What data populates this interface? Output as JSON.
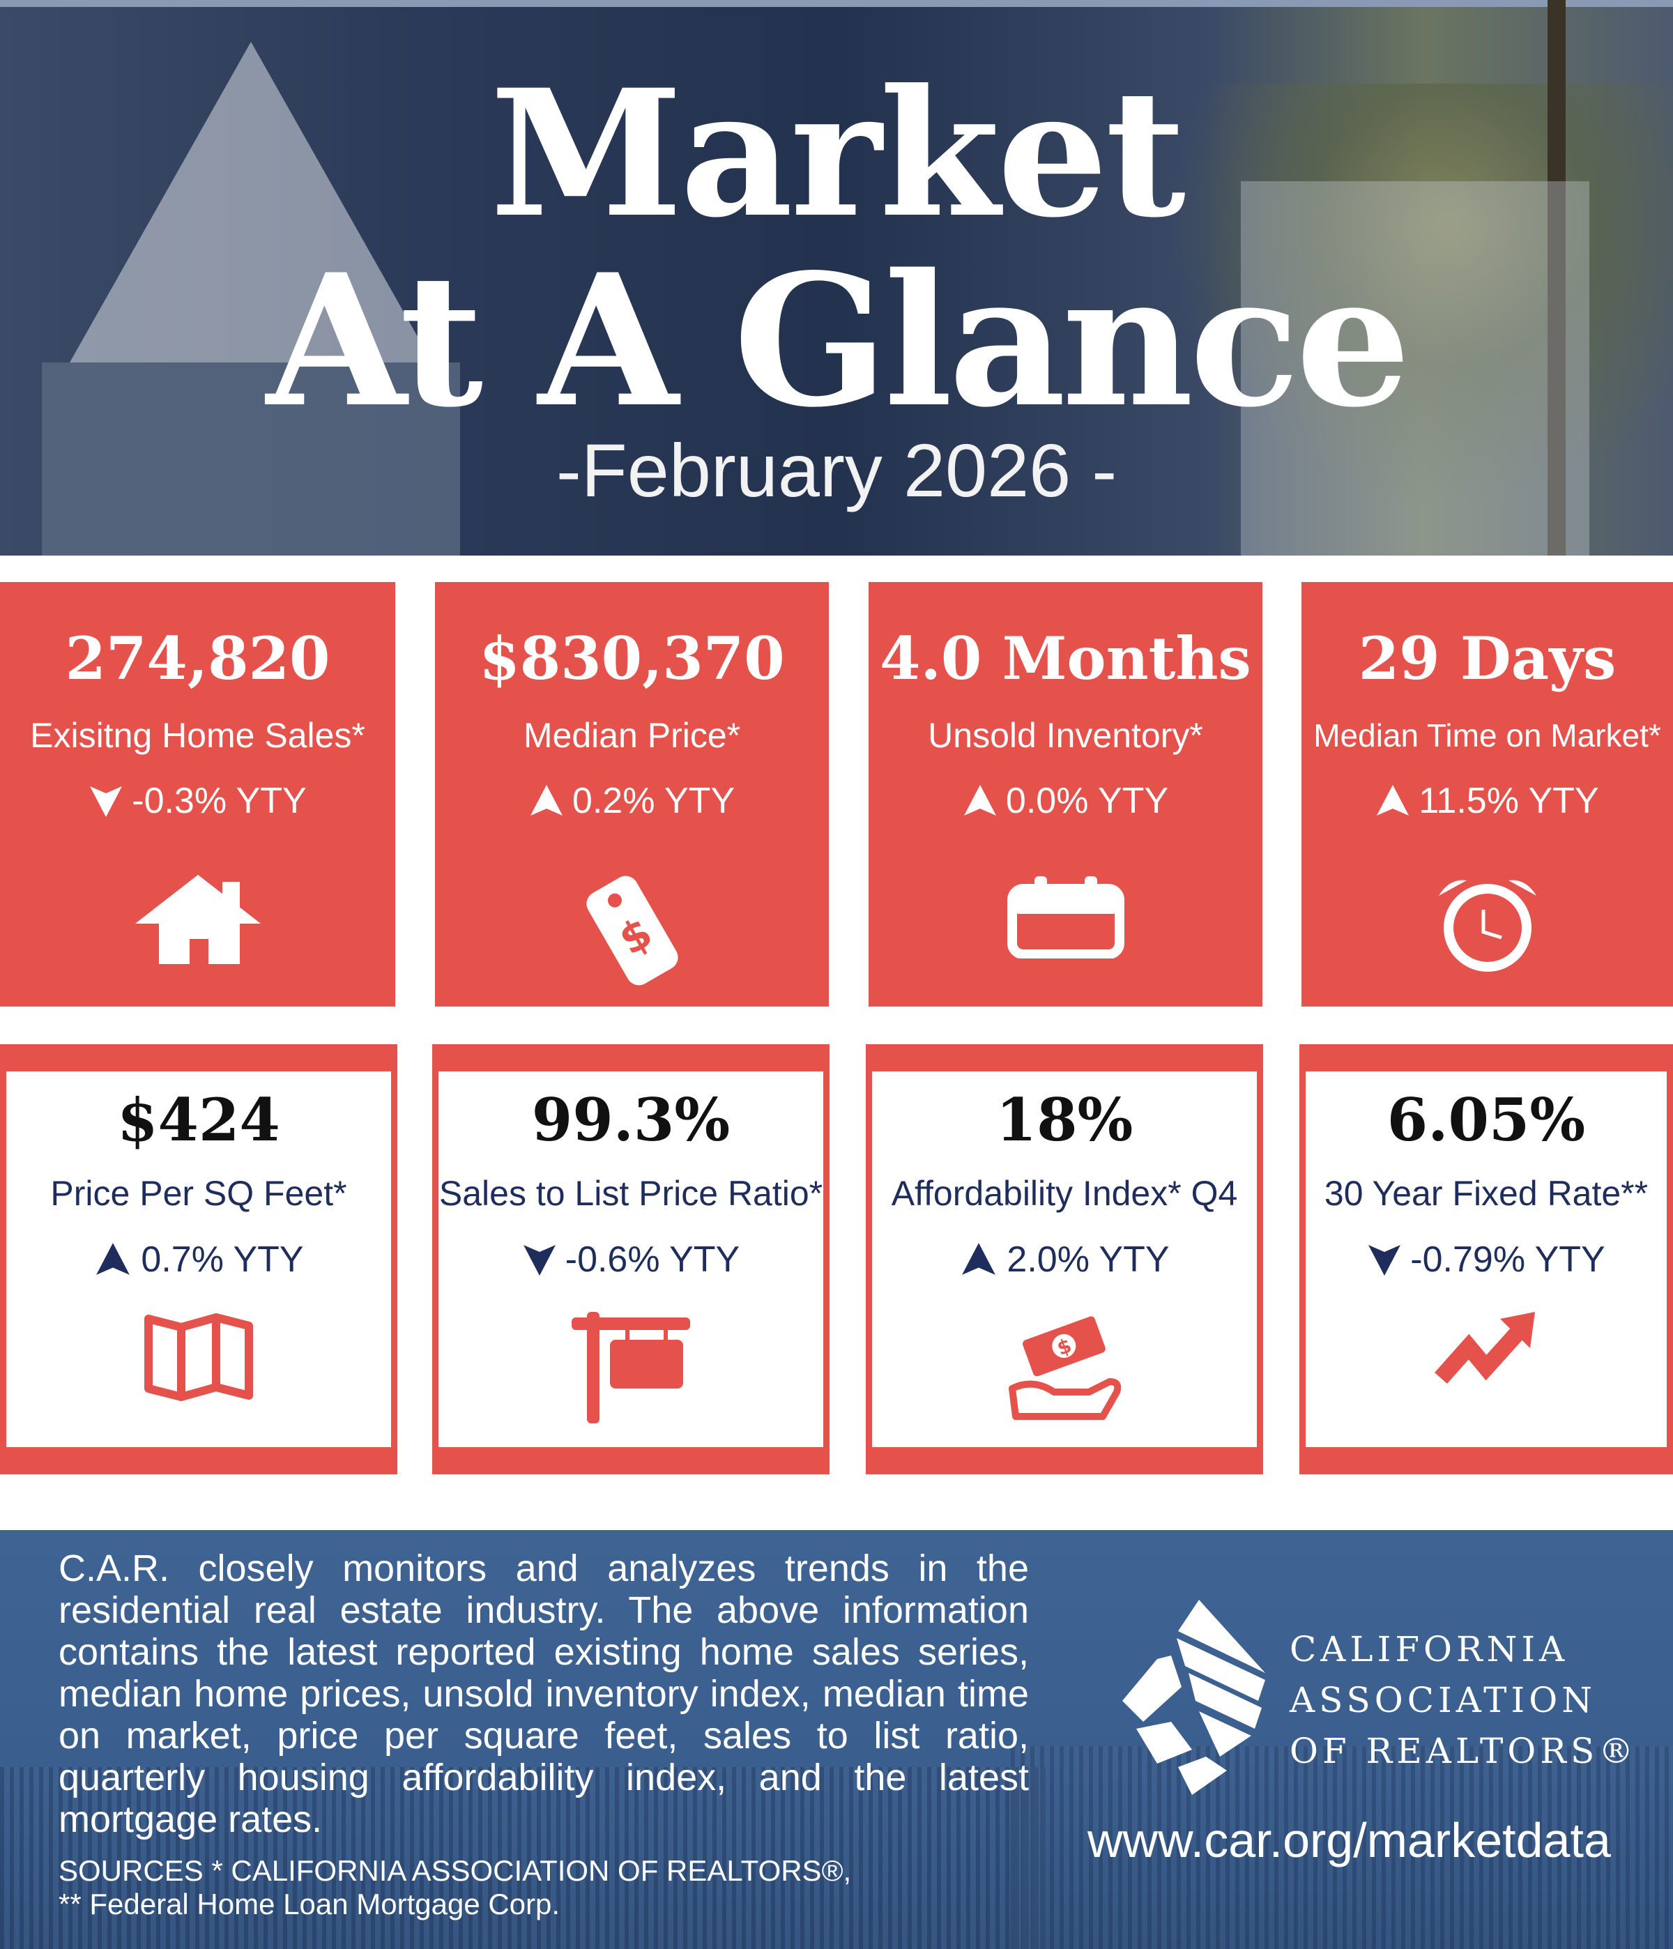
{
  "header": {
    "title_line1": "Market",
    "title_line2": "At A Glance",
    "subtitle": "-February 2026 -"
  },
  "colors": {
    "accent_red": "#E5524B",
    "navy": "#1f2d5c",
    "footer_blue": "#3a5e8e"
  },
  "top_stats": [
    {
      "value": "274,820",
      "label": "Exisitng Home Sales*",
      "direction": "down",
      "change": "-0.3% YTY",
      "icon": "house-icon"
    },
    {
      "value": "$830,370",
      "label": "Median Price*",
      "direction": "up",
      "change": "0.2% YTY",
      "icon": "price-tag-icon"
    },
    {
      "value": "4.0 Months",
      "label": "Unsold Inventory*",
      "direction": "up",
      "change": "0.0% YTY",
      "icon": "calendar-icon"
    },
    {
      "value": "29 Days",
      "label": "Median Time on Market*",
      "direction": "up",
      "change": "11.5% YTY",
      "icon": "alarm-clock-icon"
    }
  ],
  "bottom_stats": [
    {
      "value": "$424",
      "label": "Price Per SQ Feet*",
      "direction": "up",
      "change": "0.7% YTY",
      "icon": "map-icon"
    },
    {
      "value": "99.3%",
      "label": "Sales to List Price Ratio*",
      "direction": "down",
      "change": "-0.6% YTY",
      "icon": "for-sale-sign-icon"
    },
    {
      "value": "18%",
      "label": "Affordability Index* Q4",
      "direction": "up",
      "change": "2.0% YTY",
      "icon": "money-hand-icon"
    },
    {
      "value": "6.05%",
      "label": "30 Year Fixed Rate**",
      "direction": "down",
      "change": "-0.79% YTY",
      "icon": "trend-arrow-icon"
    }
  ],
  "footer": {
    "description": "C.A.R. closely monitors and analyzes trends in the residential real estate industry. The above information contains the latest reported existing home sales series, median home prices, unsold inventory index, median time on market, price per square feet, sales to list ratio, quarterly housing affordability index, and the latest mortgage rates.",
    "sources_line1": "SOURCES * CALIFORNIA ASSOCIATION OF REALTORS®,",
    "sources_line2": "** Federal Home Loan Mortgage Corp.",
    "org_line1": "CALIFORNIA",
    "org_line2": "ASSOCIATION",
    "org_line3": "OF REALTORS®",
    "url": "www.car.org/marketdata"
  }
}
